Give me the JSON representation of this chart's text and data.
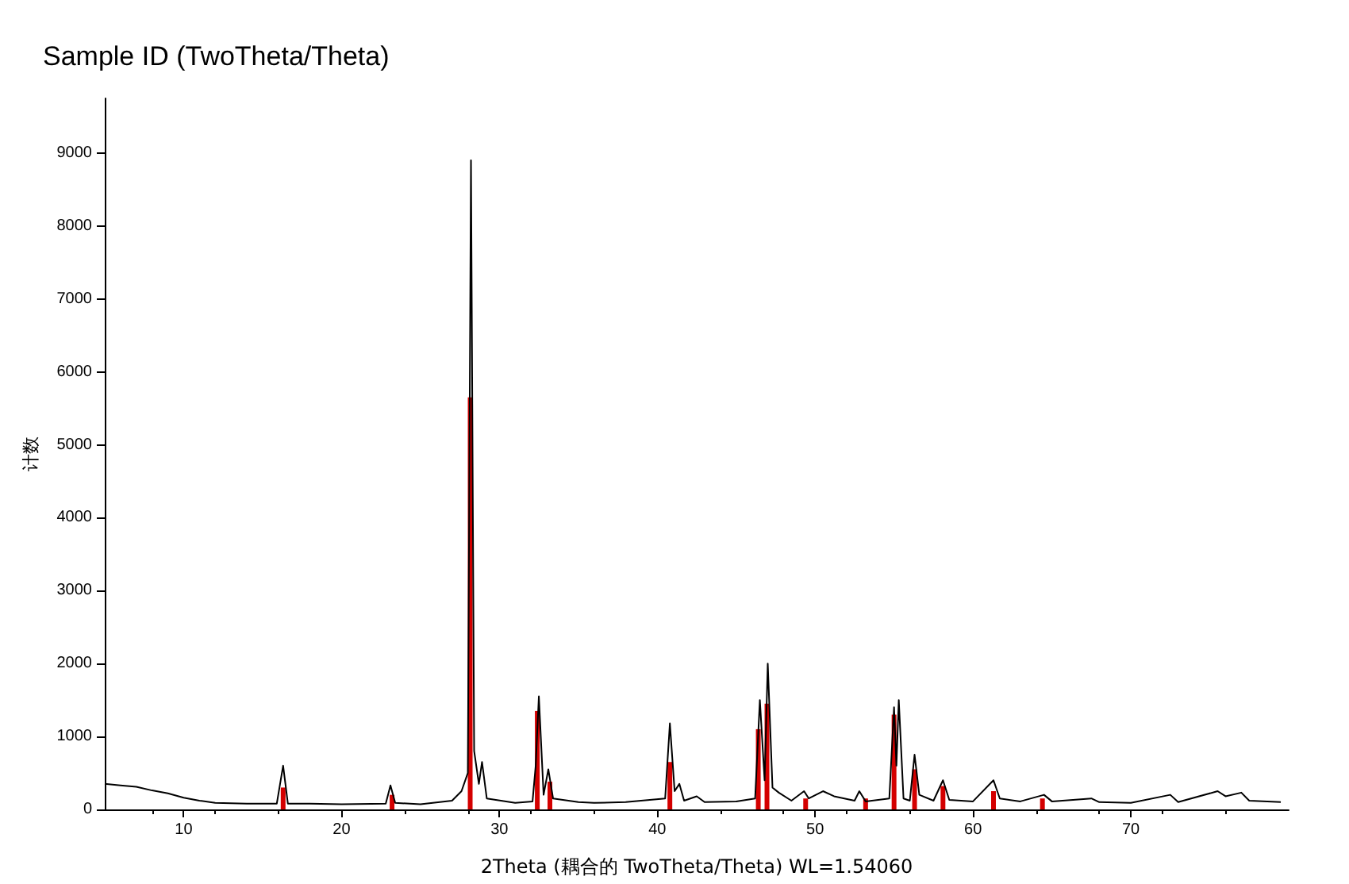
{
  "chart_data": {
    "type": "line",
    "title": "Sample ID (TwoTheta/Theta)",
    "xlabel": "2Theta (耦合的 TwoTheta/Theta) WL=1.54060",
    "ylabel": "计数",
    "xlim": [
      5,
      80
    ],
    "xticks": [
      10,
      20,
      30,
      40,
      50,
      60,
      70
    ],
    "ylim": [
      0,
      9750
    ],
    "yticks": [
      0,
      1000,
      2000,
      3000,
      4000,
      5000,
      6000,
      7000,
      8000,
      9000
    ],
    "grid": false,
    "marker": "none",
    "series": [
      {
        "color": "#000000",
        "x": [
          5,
          6,
          7,
          8,
          9,
          10,
          11,
          12,
          14,
          15.9,
          16.3,
          16.6,
          18,
          20,
          22.8,
          23.1,
          23.4,
          25,
          27,
          27.6,
          28.0,
          28.2,
          28.4,
          28.7,
          28.9,
          29.2,
          31,
          32.1,
          32.3,
          32.5,
          32.8,
          33.1,
          33.4,
          35,
          36,
          38,
          40.5,
          40.8,
          41.1,
          41.4,
          41.7,
          42.5,
          43,
          45,
          46.2,
          46.5,
          46.8,
          47.0,
          47.3,
          47.7,
          48.5,
          49.3,
          49.6,
          50.5,
          51.2,
          52.5,
          52.8,
          53.2,
          54.7,
          55.0,
          55.15,
          55.3,
          55.6,
          56.0,
          56.3,
          56.6,
          57.5,
          58.1,
          58.5,
          60,
          61.3,
          61.7,
          63,
          64.5,
          65,
          67.5,
          68,
          70,
          72.5,
          73,
          75.5,
          76,
          77,
          77.5,
          79.5
        ],
        "values": [
          350,
          330,
          310,
          260,
          220,
          160,
          120,
          90,
          80,
          80,
          600,
          80,
          80,
          70,
          80,
          330,
          90,
          70,
          120,
          250,
          500,
          8900,
          800,
          350,
          650,
          150,
          90,
          110,
          600,
          1550,
          200,
          550,
          150,
          100,
          90,
          100,
          150,
          1180,
          250,
          350,
          120,
          180,
          100,
          110,
          150,
          1500,
          400,
          2000,
          300,
          230,
          120,
          250,
          150,
          250,
          180,
          120,
          250,
          110,
          150,
          1400,
          600,
          1500,
          150,
          120,
          750,
          200,
          120,
          400,
          130,
          110,
          400,
          150,
          110,
          200,
          110,
          150,
          100,
          90,
          200,
          100,
          250,
          180,
          230,
          120,
          100
        ]
      },
      {
        "type": "bar",
        "color": "#d40000",
        "x": [
          16.3,
          23.2,
          28.15,
          32.4,
          33.2,
          40.8,
          46.4,
          46.95,
          49.4,
          53.2,
          55.0,
          56.3,
          58.1,
          61.3,
          64.4
        ],
        "values": [
          300,
          200,
          5650,
          1350,
          380,
          650,
          1100,
          1450,
          150,
          150,
          1300,
          550,
          320,
          250,
          150
        ]
      }
    ]
  }
}
